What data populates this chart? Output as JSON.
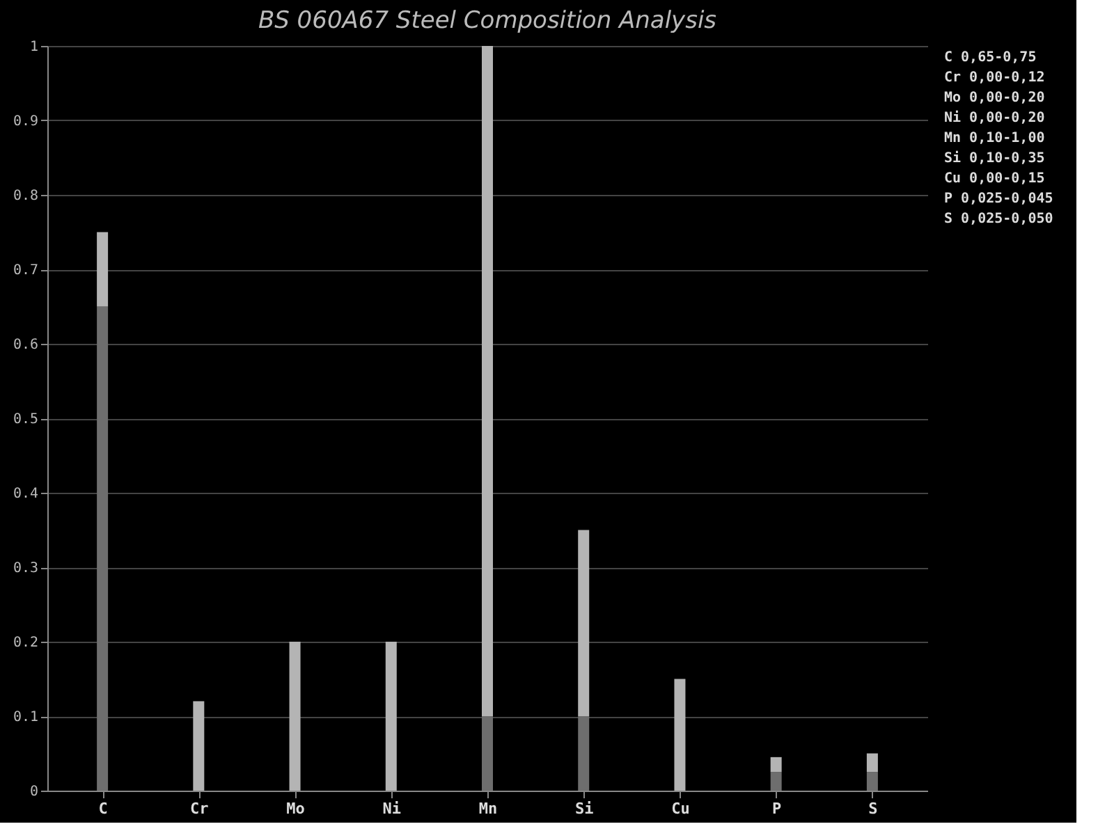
{
  "chart_data": {
    "type": "bar",
    "title": "BS 060A67 Steel Composition Analysis",
    "categories": [
      "C",
      "Cr",
      "Mo",
      "Ni",
      "Mn",
      "Si",
      "Cu",
      "P",
      "S"
    ],
    "stacked": true,
    "series": [
      {
        "color": "#6e6e6e",
        "values": [
          0.65,
          0,
          0,
          0,
          0.1,
          0.1,
          0,
          0.025,
          0.025
        ]
      },
      {
        "color": "#b4b4b4",
        "values": [
          0.1,
          0.12,
          0.2,
          0.2,
          0.9,
          0.25,
          0.15,
          0.02,
          0.025
        ]
      }
    ],
    "ylim": [
      0,
      1
    ],
    "yticks": [
      0,
      0.1,
      0.2,
      0.3,
      0.4,
      0.5,
      0.6,
      0.7,
      0.8,
      0.9,
      1
    ],
    "grid": "y",
    "legend": false,
    "annotations": [
      "C  0,65-0,75",
      "Cr 0,00-0,12",
      "Mo 0,00-0,20",
      "Ni 0,00-0,20",
      "Mn 0,10-1,00",
      "Si 0,10-0,35",
      "Cu 0,00-0,15",
      "P  0,025-0,045",
      "S  0,025-0,050"
    ]
  }
}
